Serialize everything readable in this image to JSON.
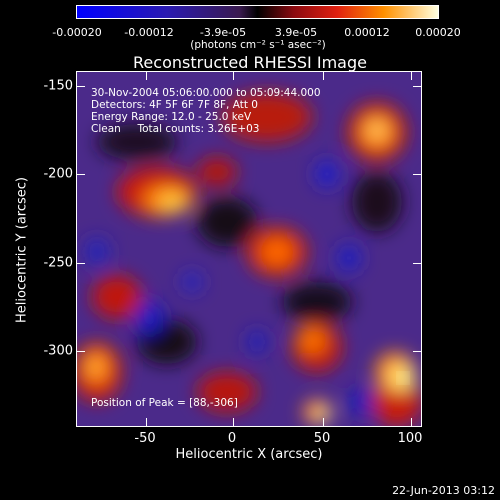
{
  "colorbar": {
    "ticks": [
      "-0.00020",
      "-0.00012",
      "-3.9e-05",
      "3.9e-05",
      "0.00012",
      "0.00020"
    ],
    "unit": "(photons cm⁻² s⁻¹ asec⁻²)"
  },
  "title": "Reconstructed RHESSI Image",
  "info": {
    "line1": "30-Nov-2004 05:06:00.000 to 05:09:44.000",
    "line2": "Detectors: 4F 5F 6F 7F 8F, Att 0",
    "line3": "Energy Range: 12.0 - 25.0 keV",
    "line4": "Clean     Total counts: 3.26E+03",
    "peak": "Position of Peak = [88,-306]"
  },
  "axes": {
    "xlabel": "Heliocentric X (arcsec)",
    "ylabel": "Heliocentric Y (arcsec)",
    "xticks": [
      "-50",
      "0",
      "50",
      "100"
    ],
    "yticks": [
      "-150",
      "-200",
      "-250",
      "-300"
    ]
  },
  "timestamp": "22-Jun-2013 03:12",
  "colors": {
    "low": "#0000ff",
    "mid": "#4b2a8a",
    "high": "#ffff80"
  }
}
